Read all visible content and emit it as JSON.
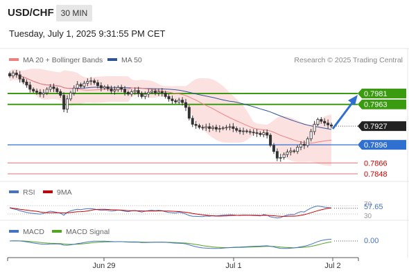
{
  "header": {
    "symbol": "USD/CHF",
    "timeframe": "30 MIN",
    "datetime": "Tuesday, July 1, 2025 9:31:55 PM CET"
  },
  "main_legend": {
    "ma20_label": "MA 20 + Bollinger Bands",
    "ma50_label": "MA 50",
    "credit": "Research © 2025 Trading Central",
    "ma20_color": "#f08080",
    "ma50_color": "#2f5597"
  },
  "levels": [
    {
      "value": 0.7981,
      "label": "0.7981",
      "style": "green"
    },
    {
      "value": 0.7963,
      "label": "0.7963",
      "style": "green"
    },
    {
      "value": 0.7927,
      "label": "0.7927",
      "style": "current"
    },
    {
      "value": 0.7896,
      "label": "0.7896",
      "style": "blue"
    },
    {
      "value": 0.7866,
      "label": "0.7866",
      "style": "red"
    },
    {
      "value": 0.7848,
      "label": "0.7848",
      "style": "red"
    }
  ],
  "rsi": {
    "label": "RSI",
    "ma_label": "9MA",
    "value_label": "57.65",
    "level_high": "70",
    "level_low": "30",
    "rsi_color": "#4472c4",
    "ma_color": "#cc0000"
  },
  "macd": {
    "label": "MACD",
    "signal_label": "MACD Signal",
    "value_label": "0.00",
    "macd_color": "#4472c4",
    "signal_color": "#52a520"
  },
  "chart_data": {
    "type": "candlestick",
    "symbol": "USD/CHF",
    "timeframe": "30 MIN",
    "x_tick_labels": [
      "Jun 29",
      "Jul 1",
      "Jul 2"
    ],
    "y_range_approx": [
      0.784,
      0.8
    ],
    "close_series": [
      0.801,
      0.8015,
      0.8012,
      0.8005,
      0.8,
      0.7995,
      0.7988,
      0.7985,
      0.7983,
      0.798,
      0.7982,
      0.7988,
      0.7992,
      0.7989,
      0.7984,
      0.7978,
      0.7955,
      0.7972,
      0.7982,
      0.799,
      0.7996,
      0.7993,
      0.7998,
      0.8001,
      0.8002,
      0.7999,
      0.7994,
      0.799,
      0.7992,
      0.7989,
      0.7985,
      0.7987,
      0.7991,
      0.7988,
      0.7983,
      0.798,
      0.7984,
      0.7986,
      0.7981,
      0.7976,
      0.798,
      0.7983,
      0.7985,
      0.7982,
      0.7984,
      0.7982,
      0.7976,
      0.7972,
      0.7969,
      0.7967,
      0.797,
      0.7966,
      0.7958,
      0.794,
      0.793,
      0.7928,
      0.7925,
      0.7924,
      0.7926,
      0.7923,
      0.7925,
      0.7922,
      0.7923,
      0.7924,
      0.7925,
      0.7926,
      0.7923,
      0.792,
      0.7918,
      0.7919,
      0.7918,
      0.7917,
      0.7916,
      0.7915,
      0.7913,
      0.7916,
      0.7912,
      0.7895,
      0.7885,
      0.7874,
      0.7875,
      0.788,
      0.7884,
      0.7886,
      0.7885,
      0.7892,
      0.7897,
      0.7895,
      0.7906,
      0.7918,
      0.793,
      0.7938,
      0.7935,
      0.7932,
      0.7929,
      0.7927
    ],
    "rsi_last": 57.65,
    "macd_last": 0.0
  }
}
